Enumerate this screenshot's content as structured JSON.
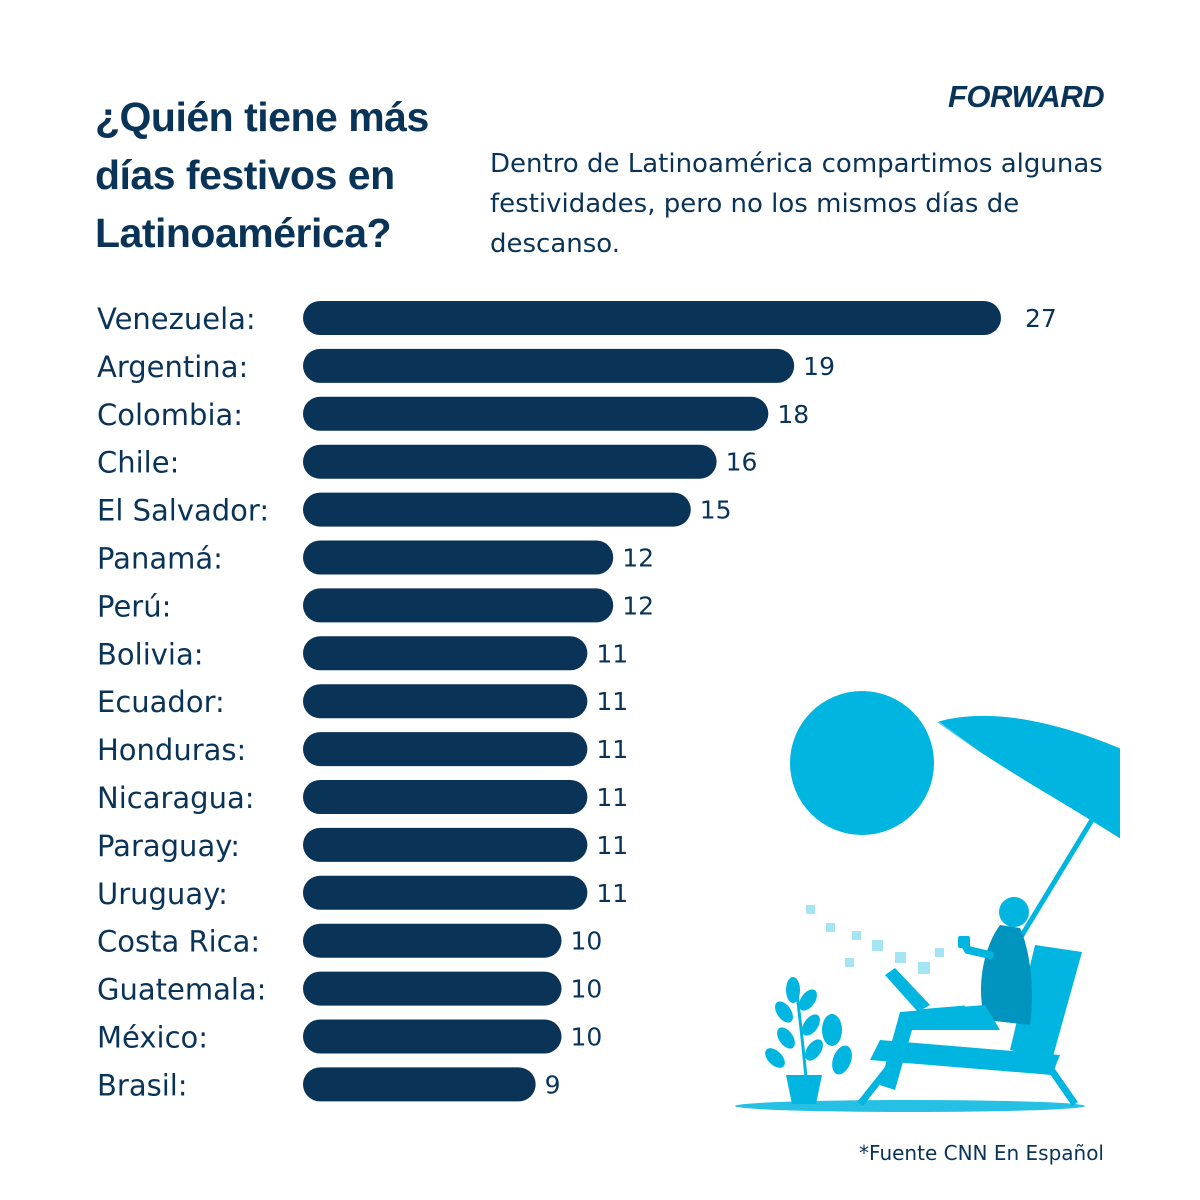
{
  "header": {
    "title": "¿Quién tiene más días festivos en Latinoamérica?",
    "subtitle": "Dentro de Latinoamérica compartimos algunas festividades, pero no los mismos días de descanso.",
    "logo": "FORWARD"
  },
  "footer": {
    "source": "*Fuente CNN En Español"
  },
  "colors": {
    "bar": "#0a3358",
    "accent": "#00b5df",
    "text": "#0a3358"
  },
  "icons": {
    "illustration": "beach-umbrella-person-laptop-icon"
  },
  "chart_data": {
    "type": "bar",
    "orientation": "horizontal",
    "categories": [
      "Venezuela:",
      "Argentina:",
      "Colombia:",
      "Chile:",
      "El Salvador:",
      "Panamá:",
      "Perú:",
      "Bolivia:",
      "Ecuador:",
      "Honduras:",
      "Nicaragua:",
      "Paraguay:",
      "Uruguay:",
      "Costa Rica:",
      "Guatemala:",
      "México:",
      "Brasil:"
    ],
    "values": [
      27,
      19,
      18,
      16,
      15,
      12,
      12,
      11,
      11,
      11,
      11,
      11,
      11,
      10,
      10,
      10,
      9
    ],
    "value_labels": [
      "27",
      "19",
      "18",
      "16",
      "15",
      "12",
      "12",
      "11",
      "11",
      "11",
      "11",
      "11",
      "11",
      "10",
      "10",
      "10",
      "9"
    ],
    "title": "",
    "xlabel": "",
    "ylabel": "",
    "grid": false,
    "legend": "none"
  }
}
